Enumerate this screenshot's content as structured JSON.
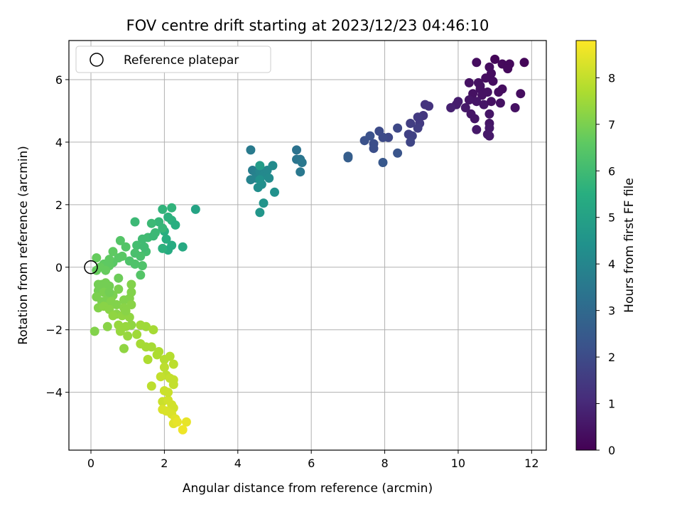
{
  "chart_data": {
    "type": "scatter",
    "title": "FOV centre drift starting at 2023/12/23 04:46:10",
    "xlabel": "Angular distance from reference (arcmin)",
    "ylabel": "Rotation from reference (arcmin)",
    "xlim": [
      -0.6,
      12.4
    ],
    "ylim": [
      -5.85,
      7.25
    ],
    "xticks": [
      0,
      2,
      4,
      6,
      8,
      10,
      12
    ],
    "yticks": [
      -4,
      -2,
      0,
      2,
      4,
      6
    ],
    "grid": true,
    "legend": {
      "placement": "top-left",
      "entries": [
        "Reference platepar"
      ]
    },
    "reference_point": {
      "x": 0,
      "y": 0
    },
    "colorbar": {
      "label": "Hours from first FF file",
      "range": [
        0,
        8.8
      ],
      "ticks": [
        0,
        1,
        2,
        3,
        4,
        5,
        6,
        7,
        8
      ],
      "colormap": "viridis"
    },
    "points": [
      [
        11.0,
        6.65,
        0.1
      ],
      [
        11.8,
        6.55,
        0.1
      ],
      [
        11.2,
        6.5,
        0.2
      ],
      [
        11.4,
        6.5,
        0.2
      ],
      [
        10.5,
        6.55,
        0.3
      ],
      [
        10.85,
        6.4,
        0.3
      ],
      [
        11.35,
        6.35,
        0.2
      ],
      [
        10.9,
        6.2,
        0.3
      ],
      [
        10.3,
        5.9,
        0.4
      ],
      [
        10.55,
        5.9,
        0.4
      ],
      [
        10.75,
        6.05,
        0.3
      ],
      [
        10.95,
        5.95,
        0.3
      ],
      [
        10.6,
        5.7,
        0.4
      ],
      [
        10.65,
        5.5,
        0.4
      ],
      [
        10.8,
        5.6,
        0.4
      ],
      [
        10.4,
        5.55,
        0.4
      ],
      [
        10.5,
        5.3,
        0.5
      ],
      [
        10.7,
        5.2,
        0.5
      ],
      [
        11.2,
        5.7,
        0.3
      ],
      [
        11.7,
        5.55,
        0.3
      ],
      [
        11.15,
        5.25,
        0.4
      ],
      [
        11.55,
        5.1,
        0.4
      ],
      [
        10.35,
        4.9,
        0.5
      ],
      [
        10.45,
        4.75,
        0.5
      ],
      [
        10.85,
        4.9,
        0.5
      ],
      [
        10.85,
        4.6,
        0.5
      ],
      [
        10.85,
        4.45,
        0.6
      ],
      [
        10.8,
        4.25,
        0.6
      ],
      [
        10.85,
        4.2,
        0.6
      ],
      [
        10.5,
        4.4,
        0.6
      ],
      [
        10.2,
        5.1,
        0.6
      ],
      [
        10.0,
        5.3,
        0.7
      ],
      [
        9.95,
        5.2,
        0.7
      ],
      [
        9.8,
        5.1,
        0.8
      ],
      [
        10.3,
        5.35,
        0.5
      ],
      [
        10.6,
        5.8,
        0.4
      ],
      [
        10.9,
        5.3,
        0.4
      ],
      [
        11.1,
        5.6,
        0.3
      ],
      [
        9.1,
        5.2,
        1.3
      ],
      [
        9.2,
        5.15,
        1.3
      ],
      [
        9.05,
        4.85,
        1.4
      ],
      [
        8.9,
        4.8,
        1.5
      ],
      [
        8.95,
        4.6,
        1.5
      ],
      [
        8.9,
        4.45,
        1.6
      ],
      [
        8.7,
        4.6,
        1.6
      ],
      [
        8.65,
        4.25,
        1.7
      ],
      [
        8.75,
        4.2,
        1.7
      ],
      [
        8.7,
        4.0,
        1.8
      ],
      [
        8.35,
        4.45,
        1.9
      ],
      [
        8.1,
        4.15,
        1.9
      ],
      [
        7.95,
        4.15,
        2.0
      ],
      [
        7.85,
        4.35,
        2.0
      ],
      [
        7.7,
        3.95,
        2.1
      ],
      [
        7.7,
        3.8,
        2.1
      ],
      [
        7.6,
        4.2,
        2.2
      ],
      [
        7.45,
        4.05,
        2.2
      ],
      [
        8.35,
        3.65,
        2.3
      ],
      [
        7.95,
        3.35,
        2.4
      ],
      [
        7.0,
        3.55,
        2.6
      ],
      [
        7.0,
        3.5,
        2.6
      ],
      [
        5.6,
        3.75,
        3.3
      ],
      [
        5.6,
        3.45,
        3.4
      ],
      [
        5.7,
        3.45,
        3.4
      ],
      [
        5.75,
        3.35,
        3.5
      ],
      [
        5.7,
        3.05,
        3.5
      ],
      [
        4.35,
        3.75,
        3.6
      ],
      [
        4.4,
        3.1,
        3.7
      ],
      [
        4.5,
        3.0,
        3.8
      ],
      [
        4.35,
        2.8,
        3.9
      ],
      [
        4.5,
        2.85,
        3.9
      ],
      [
        4.6,
        3.05,
        4.0
      ],
      [
        4.7,
        2.95,
        4.1
      ],
      [
        4.8,
        3.1,
        4.1
      ],
      [
        4.95,
        3.25,
        4.2
      ],
      [
        4.85,
        2.85,
        4.2
      ],
      [
        4.55,
        2.55,
        4.3
      ],
      [
        4.65,
        2.65,
        4.3
      ],
      [
        4.6,
        2.8,
        4.4
      ],
      [
        5.0,
        2.4,
        4.4
      ],
      [
        4.7,
        2.05,
        4.5
      ],
      [
        4.6,
        1.75,
        4.6
      ],
      [
        4.6,
        3.25,
        4.8
      ],
      [
        2.85,
        1.85,
        5.1
      ],
      [
        2.5,
        0.65,
        5.3
      ],
      [
        2.2,
        0.7,
        5.4
      ],
      [
        2.1,
        0.55,
        5.4
      ],
      [
        2.05,
        0.9,
        5.5
      ],
      [
        2.0,
        1.15,
        5.5
      ],
      [
        2.2,
        1.5,
        5.6
      ],
      [
        2.1,
        1.6,
        5.6
      ],
      [
        2.2,
        1.9,
        5.7
      ],
      [
        1.95,
        1.85,
        5.7
      ],
      [
        1.85,
        1.45,
        5.8
      ],
      [
        1.95,
        1.25,
        5.8
      ],
      [
        1.65,
        1.4,
        5.9
      ],
      [
        1.75,
        1.1,
        5.9
      ],
      [
        1.55,
        0.95,
        6.0
      ],
      [
        1.4,
        0.9,
        6.0
      ],
      [
        1.25,
        0.7,
        6.1
      ],
      [
        1.5,
        0.5,
        6.1
      ],
      [
        1.35,
        0.35,
        6.2
      ],
      [
        1.2,
        0.45,
        6.2
      ],
      [
        1.05,
        0.2,
        6.3
      ],
      [
        1.2,
        0.1,
        6.3
      ],
      [
        1.4,
        0.05,
        6.3
      ],
      [
        1.35,
        -0.25,
        6.4
      ],
      [
        0.95,
        0.65,
        6.4
      ],
      [
        0.8,
        0.85,
        6.4
      ],
      [
        0.85,
        0.35,
        6.5
      ],
      [
        0.75,
        0.3,
        6.5
      ],
      [
        0.6,
        0.15,
        6.5
      ],
      [
        0.5,
        0.05,
        6.6
      ],
      [
        0.5,
        0.25,
        6.6
      ],
      [
        0.35,
        0.1,
        6.6
      ],
      [
        0.25,
        0.0,
        6.7
      ],
      [
        0.15,
        -0.1,
        6.7
      ],
      [
        0.15,
        0.3,
        6.7
      ],
      [
        0.4,
        -0.1,
        6.7
      ],
      [
        0.75,
        -0.35,
        6.8
      ],
      [
        1.2,
        1.45,
        5.9
      ],
      [
        1.45,
        0.65,
        6.0
      ],
      [
        1.7,
        1.0,
        5.9
      ],
      [
        1.95,
        0.6,
        5.6
      ],
      [
        2.3,
        1.35,
        5.5
      ],
      [
        0.6,
        0.5,
        6.6
      ],
      [
        0.2,
        -0.55,
        6.9
      ],
      [
        0.3,
        -0.55,
        6.9
      ],
      [
        0.4,
        -0.5,
        6.9
      ],
      [
        0.5,
        -0.6,
        6.9
      ],
      [
        0.2,
        -0.75,
        6.9
      ],
      [
        0.35,
        -0.8,
        7.0
      ],
      [
        0.6,
        -0.9,
        7.0
      ],
      [
        0.75,
        -0.7,
        7.0
      ],
      [
        0.15,
        -0.95,
        7.0
      ],
      [
        0.3,
        -1.1,
        7.0
      ],
      [
        0.45,
        -1.0,
        7.0
      ],
      [
        0.55,
        -1.1,
        7.1
      ],
      [
        0.7,
        -1.2,
        7.1
      ],
      [
        0.9,
        -1.05,
        7.1
      ],
      [
        1.05,
        -1.0,
        7.1
      ],
      [
        1.1,
        -0.8,
        7.1
      ],
      [
        1.1,
        -0.55,
        7.1
      ],
      [
        0.2,
        -1.3,
        7.1
      ],
      [
        0.35,
        -1.25,
        7.2
      ],
      [
        0.5,
        -1.35,
        7.2
      ],
      [
        0.7,
        -1.5,
        7.2
      ],
      [
        0.9,
        -1.3,
        7.2
      ],
      [
        1.1,
        -1.2,
        7.2
      ],
      [
        0.6,
        -1.55,
        7.3
      ],
      [
        0.85,
        -1.55,
        7.3
      ],
      [
        1.05,
        -1.6,
        7.3
      ],
      [
        1.1,
        -1.85,
        7.3
      ],
      [
        0.95,
        -1.9,
        7.4
      ],
      [
        0.75,
        -1.85,
        7.4
      ],
      [
        0.45,
        -1.9,
        7.2
      ],
      [
        0.1,
        -2.05,
        7.1
      ],
      [
        0.8,
        -2.05,
        7.4
      ],
      [
        1.0,
        -2.2,
        7.4
      ],
      [
        0.9,
        -2.6,
        7.3
      ],
      [
        1.25,
        -2.15,
        7.5
      ],
      [
        1.35,
        -1.85,
        7.5
      ],
      [
        1.5,
        -1.9,
        7.5
      ],
      [
        1.7,
        -2.0,
        7.6
      ],
      [
        1.35,
        -2.45,
        7.6
      ],
      [
        1.5,
        -2.55,
        7.6
      ],
      [
        1.55,
        -2.95,
        7.7
      ],
      [
        1.8,
        -2.8,
        7.7
      ],
      [
        1.85,
        -2.7,
        7.7
      ],
      [
        1.65,
        -2.55,
        7.6
      ],
      [
        0.5,
        -0.8,
        6.9
      ],
      [
        0.95,
        -1.4,
        7.2
      ],
      [
        2.0,
        -2.95,
        7.8
      ],
      [
        2.15,
        -2.85,
        7.8
      ],
      [
        2.25,
        -3.1,
        7.9
      ],
      [
        2.0,
        -3.2,
        7.9
      ],
      [
        2.05,
        -3.45,
        7.9
      ],
      [
        1.9,
        -3.5,
        8.0
      ],
      [
        2.15,
        -3.55,
        8.0
      ],
      [
        2.25,
        -3.75,
        8.0
      ],
      [
        2.25,
        -3.6,
        8.0
      ],
      [
        1.65,
        -3.8,
        7.9
      ],
      [
        2.0,
        -3.95,
        8.1
      ],
      [
        1.95,
        -4.3,
        8.1
      ],
      [
        2.1,
        -4.25,
        8.2
      ],
      [
        2.2,
        -4.4,
        8.2
      ],
      [
        2.25,
        -4.5,
        8.2
      ],
      [
        2.05,
        -4.6,
        8.3
      ],
      [
        2.2,
        -4.7,
        8.3
      ],
      [
        1.95,
        -4.55,
        8.3
      ],
      [
        2.3,
        -4.85,
        8.4
      ],
      [
        2.25,
        -5.0,
        8.4
      ],
      [
        2.6,
        -4.95,
        8.5
      ],
      [
        2.5,
        -5.2,
        8.6
      ],
      [
        2.35,
        -4.95,
        8.5
      ],
      [
        2.1,
        -4.0,
        8.1
      ]
    ]
  }
}
